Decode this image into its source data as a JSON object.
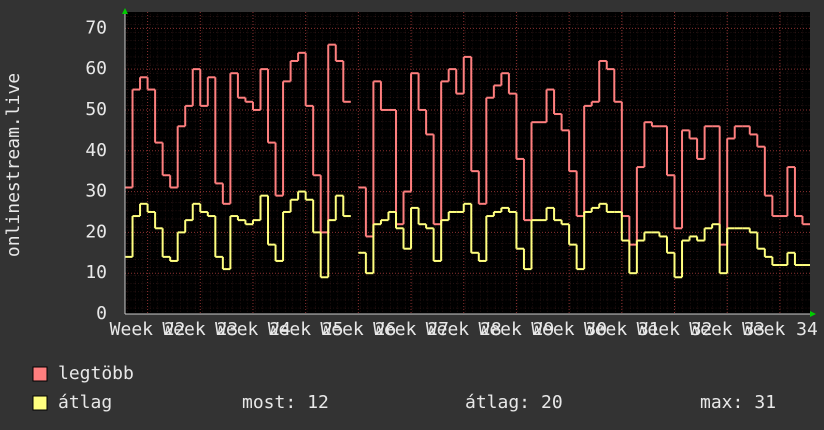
{
  "chart_data": {
    "type": "line",
    "step": true,
    "y_label": "onlinestream.live",
    "xlim": [
      0,
      91
    ],
    "xticks": [
      {
        "value": 3,
        "label": "Week 22"
      },
      {
        "value": 10,
        "label": "Week 23"
      },
      {
        "value": 17,
        "label": "Week 24"
      },
      {
        "value": 24,
        "label": "Week 25"
      },
      {
        "value": 31,
        "label": "Week 26"
      },
      {
        "value": 38,
        "label": "Week 27"
      },
      {
        "value": 45,
        "label": "Week 28"
      },
      {
        "value": 52,
        "label": "Week 29"
      },
      {
        "value": 59,
        "label": "Week 30"
      },
      {
        "value": 66,
        "label": "Week 31"
      },
      {
        "value": 73,
        "label": "Week 32"
      },
      {
        "value": 80,
        "label": "Week 33"
      },
      {
        "value": 87,
        "label": "Week 34"
      }
    ],
    "ylim": [
      0,
      74
    ],
    "yticks": [
      0,
      10,
      20,
      30,
      40,
      50,
      60,
      70
    ],
    "grid": true,
    "series": [
      {
        "name": "legtöbb",
        "color": "#ff7f7f",
        "values": [
          31,
          55,
          58,
          55,
          42,
          34,
          31,
          46,
          51,
          60,
          51,
          58,
          32,
          27,
          59,
          53,
          52,
          50,
          60,
          42,
          29,
          57,
          62,
          64,
          51,
          34,
          20,
          66,
          62,
          52,
          null,
          31,
          19,
          57,
          50,
          50,
          22,
          30,
          59,
          50,
          44,
          22,
          57,
          60,
          54,
          63,
          35,
          27,
          53,
          56,
          59,
          54,
          38,
          23,
          47,
          47,
          55,
          49,
          45,
          35,
          24,
          51,
          52,
          62,
          60,
          52,
          24,
          17,
          36,
          47,
          46,
          46,
          34,
          21,
          45,
          43,
          38,
          46,
          46,
          17,
          43,
          46,
          46,
          44,
          41,
          29,
          24,
          24,
          36,
          24,
          22
        ]
      },
      {
        "name": "átlag",
        "color": "#ffff7f",
        "values": [
          14,
          24,
          27,
          25,
          21,
          14,
          13,
          20,
          23,
          27,
          25,
          24,
          14,
          11,
          24,
          23,
          22,
          23,
          29,
          17,
          13,
          25,
          28,
          30,
          28,
          20,
          9,
          23,
          29,
          24,
          null,
          15,
          10,
          22,
          23,
          25,
          21,
          16,
          26,
          22,
          21,
          13,
          23,
          25,
          25,
          27,
          15,
          13,
          24,
          25,
          26,
          25,
          16,
          11,
          23,
          23,
          26,
          23,
          22,
          17,
          11,
          25,
          26,
          27,
          25,
          25,
          18,
          10,
          18,
          20,
          20,
          19,
          15,
          9,
          18,
          19,
          18,
          21,
          22,
          10,
          21,
          21,
          21,
          20,
          16,
          14,
          12,
          12,
          15,
          12,
          12
        ]
      }
    ],
    "stats": [
      {
        "label": "most:",
        "value": 12
      },
      {
        "label": "átlag:",
        "value": 20
      },
      {
        "label": "max:",
        "value": 31
      }
    ]
  }
}
